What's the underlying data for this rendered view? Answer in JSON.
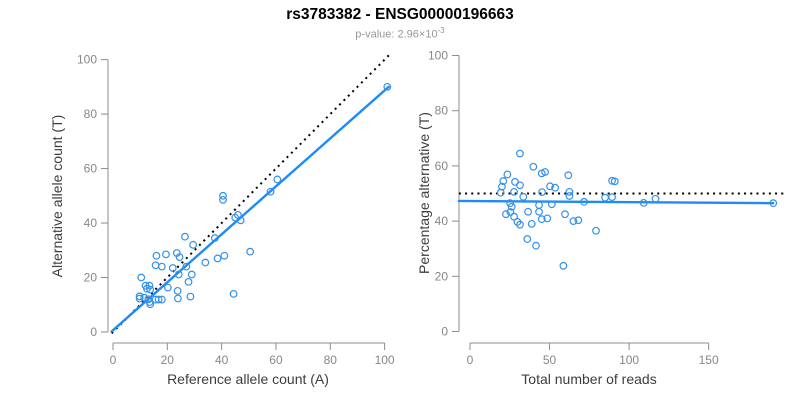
{
  "header": {
    "title": "rs3783382 - ENSG00000196663",
    "subtitle_text": "p-value: 2.96×10",
    "subtitle_exponent": "-3"
  },
  "colors": {
    "point_stroke": "#3490E8",
    "fit_line": "#1E8BF7",
    "reference_line": "#000000",
    "axis": "#8C8C8C",
    "tick_label": "#878787",
    "axis_title": "#3D3D3D",
    "title": "#000000",
    "subtitle": "#969696",
    "background": "#FFFFFF"
  },
  "chart_data": [
    {
      "type": "scatter",
      "panel": "left",
      "xlabel": "Reference allele count (A)",
      "ylabel": "Alternative allele count (T)",
      "xlim": [
        0,
        102
      ],
      "ylim": [
        0,
        102
      ],
      "xticks": [
        0,
        20,
        40,
        60,
        80,
        100
      ],
      "yticks": [
        0,
        20,
        40,
        60,
        80,
        100
      ],
      "grid": false,
      "legend": "none",
      "lines": [
        {
          "name": "identity-line",
          "style": "dotted",
          "role": "reference",
          "x": [
            -0.5,
            102.3
          ],
          "y": [
            -0.5,
            102.3
          ]
        },
        {
          "name": "regression-line",
          "style": "solid",
          "role": "fit",
          "x": [
            -0.5,
            101.5
          ],
          "y": [
            0.2,
            90
          ]
        }
      ],
      "points": [
        [
          101,
          90
        ],
        [
          60.5,
          56
        ],
        [
          58,
          51.5
        ],
        [
          40.5,
          50
        ],
        [
          40.5,
          48.5
        ],
        [
          46,
          43
        ],
        [
          45,
          42
        ],
        [
          47,
          41
        ],
        [
          37.5,
          34.5
        ],
        [
          26.5,
          35
        ],
        [
          29.5,
          32
        ],
        [
          50.5,
          29.5
        ],
        [
          41,
          28
        ],
        [
          38.5,
          27
        ],
        [
          34,
          25.5
        ],
        [
          16,
          28
        ],
        [
          19.5,
          28.5
        ],
        [
          23.5,
          29
        ],
        [
          24.5,
          27.5
        ],
        [
          15.7,
          24.5
        ],
        [
          18,
          24
        ],
        [
          22,
          23.5
        ],
        [
          27,
          24
        ],
        [
          10.4,
          20
        ],
        [
          29,
          21.1
        ],
        [
          24.2,
          21.1
        ],
        [
          27.8,
          18.4
        ],
        [
          12,
          17
        ],
        [
          13.4,
          17
        ],
        [
          20.2,
          16.3
        ],
        [
          23.8,
          15.1
        ],
        [
          13.7,
          15.6
        ],
        [
          12.5,
          15.9
        ],
        [
          44.4,
          14
        ],
        [
          28.5,
          13
        ],
        [
          23.9,
          12.3
        ],
        [
          9.8,
          13.1
        ],
        [
          9.8,
          12.3
        ],
        [
          11.5,
          12.6
        ],
        [
          13,
          12
        ],
        [
          13.5,
          11
        ],
        [
          13.7,
          10.2
        ],
        [
          15.7,
          11.9
        ],
        [
          16.8,
          11.9
        ],
        [
          18,
          11.9
        ]
      ]
    },
    {
      "type": "scatter",
      "panel": "right",
      "xlabel": "Total number of reads",
      "ylabel": "Percentage alternative (T)",
      "xlim": [
        0,
        197
      ],
      "ylim": [
        0,
        100
      ],
      "xticks": [
        0,
        50,
        100,
        150
      ],
      "yticks": [
        0,
        20,
        40,
        60,
        80,
        100
      ],
      "grid": false,
      "legend": "none",
      "lines": [
        {
          "name": "expected-percentage-line",
          "style": "dotted",
          "role": "reference",
          "x": [
            -7,
            197
          ],
          "y": [
            50,
            50
          ]
        },
        {
          "name": "mean-percentage-line",
          "style": "solid",
          "role": "fit",
          "x": [
            -7,
            190.6
          ],
          "y": [
            47.3,
            46.5
          ]
        }
      ],
      "points": [
        [
          31.4,
          64.5
        ],
        [
          39.8,
          59.7
        ],
        [
          45.1,
          57.3
        ],
        [
          47.2,
          57.8
        ],
        [
          61.8,
          56.6
        ],
        [
          23.5,
          56.9
        ],
        [
          20.9,
          54.5
        ],
        [
          28.3,
          54.2
        ],
        [
          31.4,
          53.0
        ],
        [
          20.1,
          52.5
        ],
        [
          50.3,
          52.6
        ],
        [
          53.5,
          52.1
        ],
        [
          89.3,
          54.6
        ],
        [
          91,
          54.4
        ],
        [
          19.3,
          50.3
        ],
        [
          27.7,
          50.6
        ],
        [
          33.5,
          48.8
        ],
        [
          45.3,
          50.5
        ],
        [
          62.5,
          50.6
        ],
        [
          62.5,
          49.1
        ],
        [
          84.9,
          48.5
        ],
        [
          89.3,
          48.7
        ],
        [
          116.6,
          48.1
        ],
        [
          71.7,
          47.0
        ],
        [
          109.2,
          46.6
        ],
        [
          190.6,
          46.5
        ],
        [
          25.2,
          46.5
        ],
        [
          26.2,
          45.2
        ],
        [
          43.4,
          45.8
        ],
        [
          51.4,
          46.1
        ],
        [
          25.4,
          43.3
        ],
        [
          22.6,
          42.5
        ],
        [
          36.5,
          43.4
        ],
        [
          43.4,
          43.4
        ],
        [
          27.7,
          41.6
        ],
        [
          45.1,
          40.7
        ],
        [
          48.6,
          41.0
        ],
        [
          29.8,
          39.7
        ],
        [
          31.4,
          38.7
        ],
        [
          38.8,
          39.0
        ],
        [
          59.7,
          42.5
        ],
        [
          65,
          40.0
        ],
        [
          68.1,
          40.3
        ],
        [
          79.2,
          36.5
        ],
        [
          36,
          33.5
        ],
        [
          41.5,
          31.1
        ],
        [
          58.7,
          23.8
        ]
      ]
    }
  ]
}
